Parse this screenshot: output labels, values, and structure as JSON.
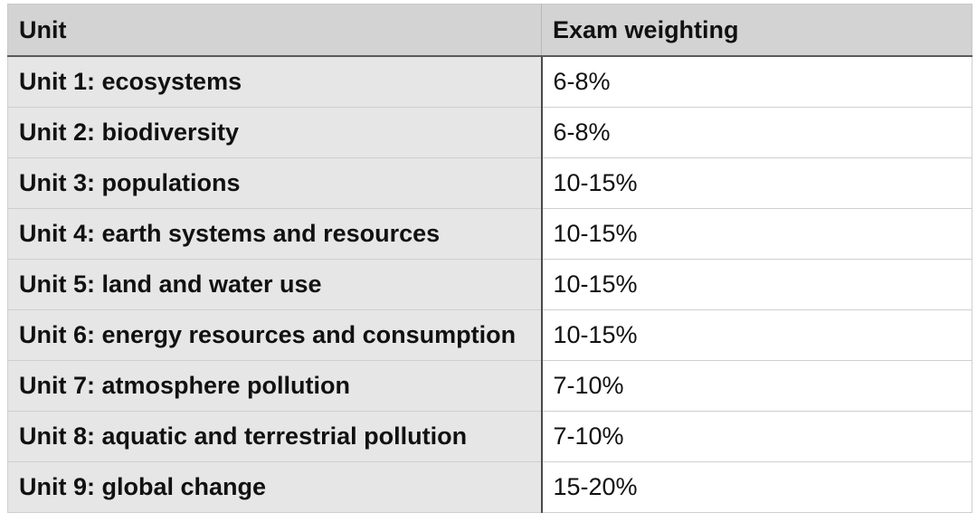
{
  "table": {
    "headers": [
      "Unit",
      "Exam weighting"
    ],
    "rows": [
      {
        "unit": "Unit 1: ecosystems",
        "weighting": "6-8%"
      },
      {
        "unit": "Unit 2: biodiversity",
        "weighting": "6-8%"
      },
      {
        "unit": "Unit 3: populations",
        "weighting": "10-15%"
      },
      {
        "unit": "Unit 4: earth systems and resources",
        "weighting": "10-15%"
      },
      {
        "unit": "Unit 5: land and water use",
        "weighting": "10-15%"
      },
      {
        "unit": "Unit 6: energy resources and consumption",
        "weighting": "10-15%"
      },
      {
        "unit": "Unit 7: atmosphere pollution",
        "weighting": "7-10%"
      },
      {
        "unit": "Unit 8: aquatic and terrestrial pollution",
        "weighting": "7-10%"
      },
      {
        "unit": "Unit 9: global change",
        "weighting": "15-20%"
      }
    ]
  },
  "colors": {
    "header_bg": "#d3d3d3",
    "unit_cell_bg": "#e6e6e6",
    "weight_cell_bg": "#ffffff",
    "text": "#111111"
  }
}
